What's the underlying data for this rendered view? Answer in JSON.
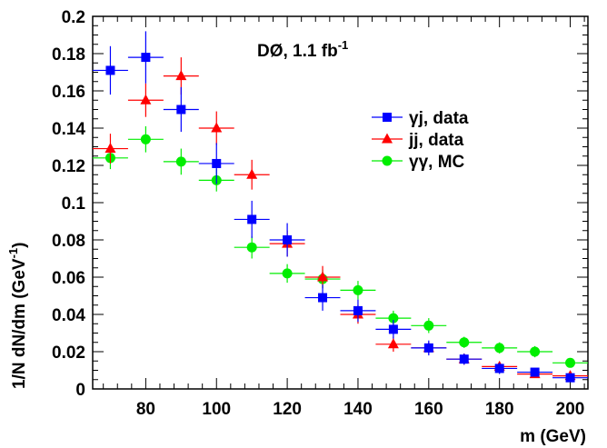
{
  "chart_data": {
    "type": "scatter",
    "title": "",
    "annotation": {
      "main": "DØ, 1.1 fb",
      "sup": "-1"
    },
    "xlabel": "m (GeV)",
    "ylabel": {
      "main": "1/N dN/dm (GeV",
      "sup": "-1",
      "end": ")"
    },
    "xlim": [
      65,
      205
    ],
    "ylim": [
      0,
      0.2
    ],
    "xticks": [
      80,
      100,
      120,
      140,
      160,
      180,
      200
    ],
    "yticks": [
      0,
      0.02,
      0.04,
      0.06,
      0.08,
      0.1,
      0.12,
      0.14,
      0.16,
      0.18,
      0.2
    ],
    "ytick_labels": [
      "0",
      "0.02",
      "0.04",
      "0.06",
      "0.08",
      "0.1",
      "0.12",
      "0.14",
      "0.16",
      "0.18",
      "0.2"
    ],
    "xtick_labels": [
      "80",
      "100",
      "120",
      "140",
      "160",
      "180",
      "200"
    ],
    "bin_half_width": 5,
    "legend_position": "top-right",
    "series": [
      {
        "name": "γj, data",
        "marker": "square",
        "color": "#0000ff",
        "x": [
          70,
          80,
          90,
          100,
          110,
          120,
          130,
          140,
          150,
          160,
          170,
          180,
          190,
          200
        ],
        "y": [
          0.171,
          0.178,
          0.15,
          0.121,
          0.091,
          0.08,
          0.049,
          0.042,
          0.032,
          0.022,
          0.016,
          0.011,
          0.009,
          0.006
        ],
        "err": [
          0.013,
          0.014,
          0.012,
          0.011,
          0.01,
          0.009,
          0.007,
          0.006,
          0.005,
          0.004,
          0.003,
          0.003,
          0.002,
          0.002
        ]
      },
      {
        "name": "jj, data",
        "marker": "triangle",
        "color": "#ff0000",
        "x": [
          70,
          80,
          90,
          100,
          110,
          120,
          130,
          140,
          150,
          160,
          170,
          180,
          190,
          200
        ],
        "y": [
          0.129,
          0.155,
          0.168,
          0.14,
          0.115,
          0.078,
          0.06,
          0.04,
          0.024,
          0.022,
          0.016,
          0.012,
          0.008,
          0.007
        ],
        "err": [
          0.008,
          0.009,
          0.01,
          0.009,
          0.008,
          0.007,
          0.006,
          0.005,
          0.004,
          0.003,
          0.003,
          0.002,
          0.002,
          0.002
        ]
      },
      {
        "name": "γγ, MC",
        "marker": "circle",
        "color": "#00ee00",
        "x": [
          70,
          80,
          90,
          100,
          110,
          120,
          130,
          140,
          150,
          160,
          170,
          180,
          190,
          200
        ],
        "y": [
          0.124,
          0.134,
          0.122,
          0.112,
          0.076,
          0.062,
          0.059,
          0.053,
          0.038,
          0.034,
          0.025,
          0.022,
          0.02,
          0.014
        ],
        "err": [
          0.006,
          0.007,
          0.007,
          0.006,
          0.006,
          0.005,
          0.005,
          0.005,
          0.004,
          0.004,
          0.003,
          0.003,
          0.003,
          0.002
        ]
      }
    ]
  }
}
